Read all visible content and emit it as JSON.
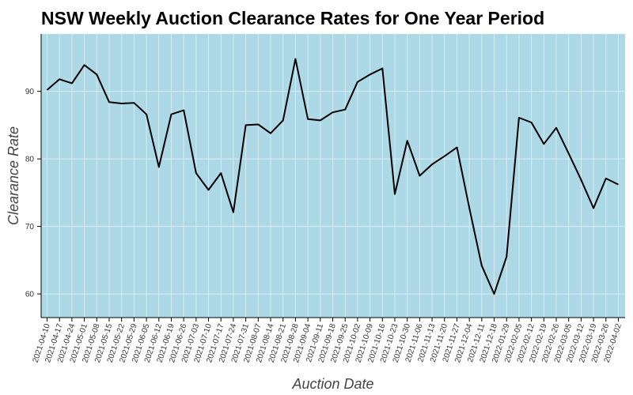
{
  "chart_data": {
    "type": "line",
    "title": "NSW Weekly Auction Clearance Rates for One Year Period",
    "xlabel": "Auction Date",
    "ylabel": "Clearance Rate",
    "ylim": [
      56.5,
      98.5
    ],
    "yticks": [
      60,
      70,
      80,
      90
    ],
    "grid": true,
    "colors": {
      "background": "#add8e6",
      "line": "#000000",
      "grid": "#d9ecf3"
    },
    "x": [
      "2021-04-10",
      "2021-04-17",
      "2021-04-24",
      "2021-05-01",
      "2021-05-08",
      "2021-05-15",
      "2021-05-22",
      "2021-05-29",
      "2021-06-05",
      "2021-06-12",
      "2021-06-19",
      "2021-06-26",
      "2021-07-03",
      "2021-07-10",
      "2021-07-17",
      "2021-07-24",
      "2021-07-31",
      "2021-08-07",
      "2021-08-14",
      "2021-08-21",
      "2021-08-28",
      "2021-09-04",
      "2021-09-11",
      "2021-09-18",
      "2021-09-25",
      "2021-10-02",
      "2021-10-09",
      "2021-10-16",
      "2021-10-23",
      "2021-10-30",
      "2021-11-06",
      "2021-11-13",
      "2021-11-20",
      "2021-11-27",
      "2021-12-04",
      "2021-12-11",
      "2021-12-18",
      "2022-01-29",
      "2022-02-05",
      "2022-02-12",
      "2022-02-19",
      "2022-02-26",
      "2022-03-05",
      "2022-03-12",
      "2022-03-19",
      "2022-03-26",
      "2022-04-02"
    ],
    "series": [
      {
        "values": [
          90.2,
          91.8,
          91.2,
          93.9,
          92.5,
          88.4,
          88.2,
          88.3,
          86.6,
          78.8,
          86.6,
          87.2,
          77.9,
          75.4,
          77.9,
          72.1,
          85.0,
          85.1,
          83.8,
          85.7,
          94.8,
          85.9,
          85.7,
          86.9,
          87.3,
          91.4,
          92.5,
          93.4,
          74.8,
          82.7,
          77.5,
          79.2,
          80.4,
          81.7,
          72.7,
          64.2,
          60.0,
          65.5,
          86.1,
          85.4,
          82.2,
          84.6,
          80.8,
          76.9,
          72.7,
          77.1,
          76.2
        ]
      }
    ]
  }
}
